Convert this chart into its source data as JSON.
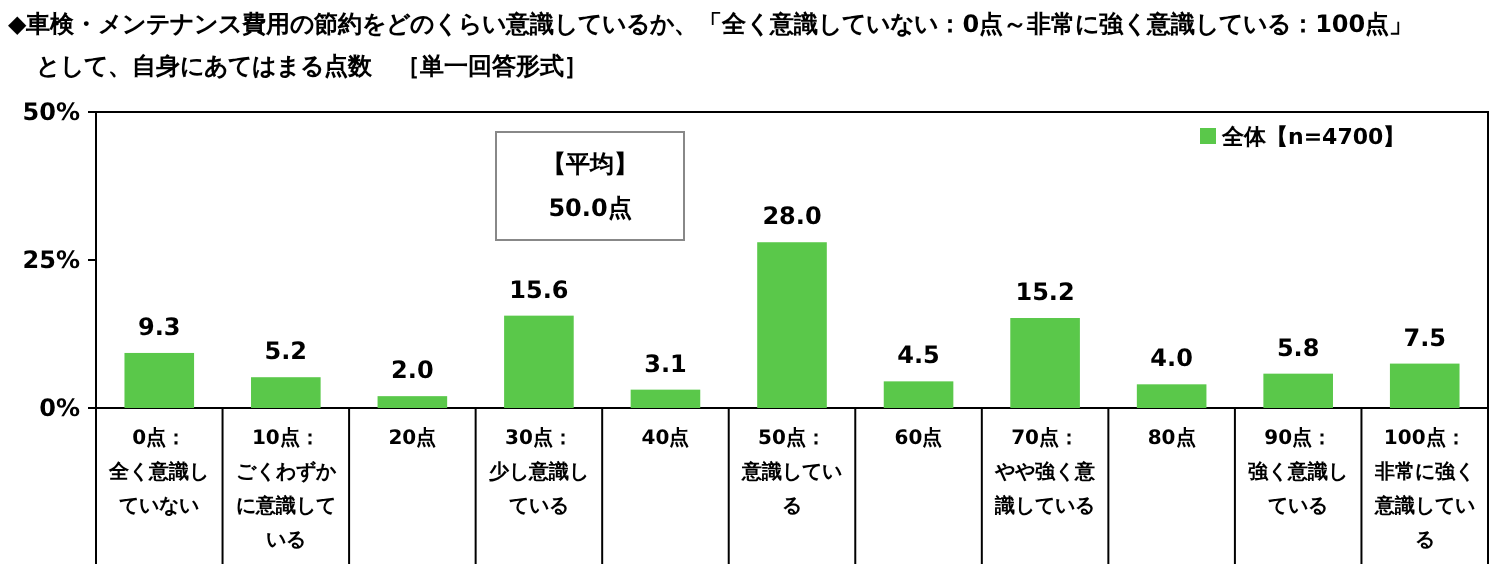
{
  "chart_data": {
    "type": "bar",
    "title": "◆車検・メンテナンス費用の節約をどのくらい意識しているか、「全く意識していない：0点～非常に強く意識している：100点」として、自身にあてはまる点数　［単一回答形式］",
    "categories": [
      "0点：全く意識していない",
      "10点：ごくわずかに意識している",
      "20点",
      "30点：少し意識している",
      "40点",
      "50点：意識している",
      "60点",
      "70点：やや強く意識している",
      "80点",
      "90点：強く意識している",
      "100点：非常に強く意識している"
    ],
    "series": [
      {
        "name": "全体【n=4700】",
        "color": "#5ac84a",
        "values": [
          9.3,
          5.2,
          2.0,
          15.6,
          3.1,
          28.0,
          4.5,
          15.2,
          4.0,
          5.8,
          7.5
        ]
      }
    ],
    "value_labels": [
      "9.3",
      "5.2",
      "2.0",
      "15.6",
      "3.1",
      "28.0",
      "4.5",
      "15.2",
      "4.0",
      "5.8",
      "7.5"
    ],
    "ylim": [
      0,
      50
    ],
    "yticks": [
      {
        "value": 0,
        "label": "0%"
      },
      {
        "value": 25,
        "label": "25%"
      },
      {
        "value": 50,
        "label": "50%"
      }
    ],
    "annotations": [
      "【平均】50.0点"
    ],
    "legend": "top right",
    "grid": false
  }
}
